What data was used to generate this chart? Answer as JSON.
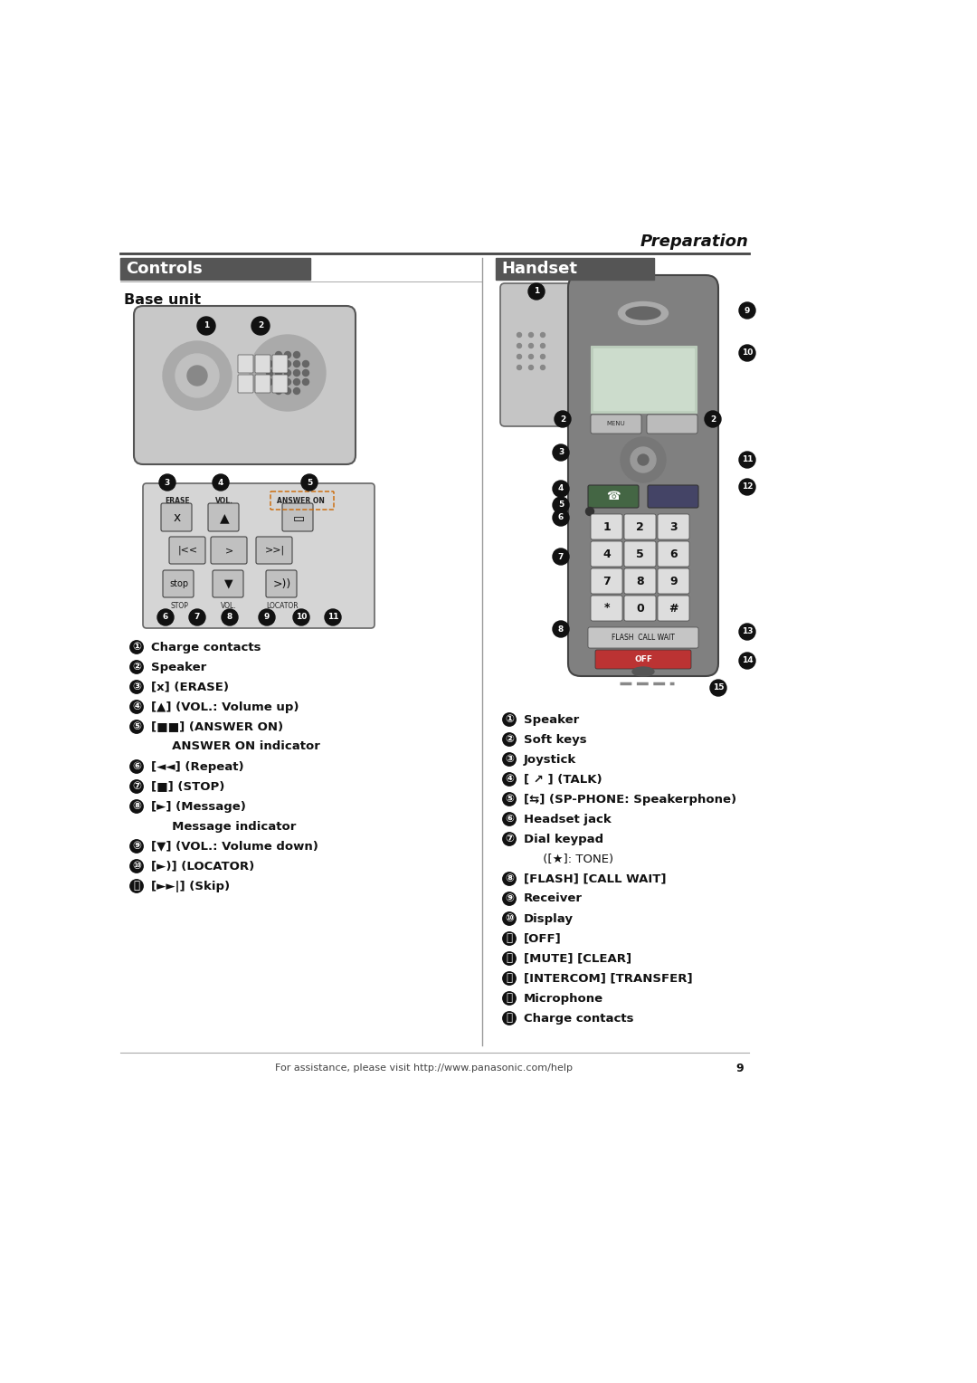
{
  "bg_color": "#ffffff",
  "preparation_label": "Preparation",
  "controls_label": "Controls",
  "base_unit_label": "Base unit",
  "handset_label": "Handset",
  "footer_text": "For assistance, please visit http://www.panasonic.com/help",
  "page_number": "9",
  "dark_bar_color": "#555555",
  "text_color": "#111111"
}
